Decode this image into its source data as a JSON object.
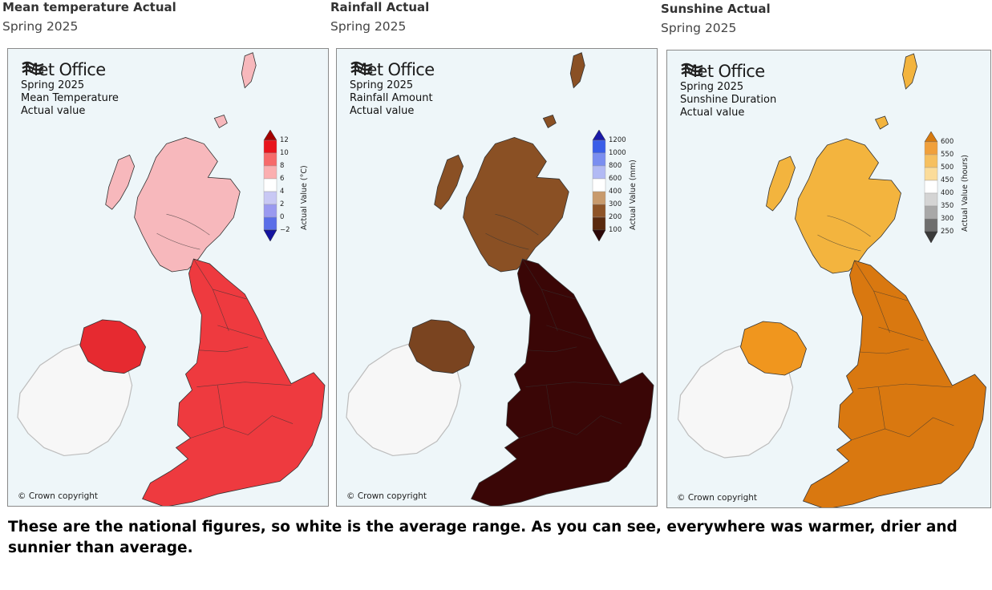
{
  "panels": [
    {
      "title": "Mean temperature Actual",
      "subtitle": "Spring 2025",
      "map": {
        "brand": "Met Office",
        "lines": [
          "Spring 2025",
          "Mean Temperature",
          "Actual value"
        ],
        "copyright": "© Crown copyright",
        "legend": {
          "label": "Actual Value (°C)",
          "ticks": [
            "12",
            "10",
            "8",
            "6",
            "4",
            "2",
            "0",
            "−2"
          ],
          "colors": [
            "#e8141c",
            "#f66a6a",
            "#fbafb0",
            "#ffffff",
            "#c8c8f4",
            "#9a9af0",
            "#5a6ee8"
          ],
          "top_color": "#a40000",
          "bottom_color": "#1414a0"
        },
        "fill_north": "#f7b8bc",
        "fill_south": "#ee3a3f",
        "fill_ni": "#e62a30"
      }
    },
    {
      "title": "Rainfall Actual",
      "subtitle": "Spring 2025",
      "map": {
        "brand": "Met Office",
        "lines": [
          "Spring 2025",
          "Rainfall Amount",
          "Actual value"
        ],
        "copyright": "© Crown copyright",
        "legend": {
          "label": "Actual Value (mm)",
          "ticks": [
            "1200",
            "1000",
            "800",
            "600",
            "400",
            "300",
            "200",
            "100"
          ],
          "colors": [
            "#3a5ee8",
            "#7a8ef0",
            "#b2baf4",
            "#ffffff",
            "#c89a6c",
            "#8e5428",
            "#5a2a0e"
          ],
          "top_color": "#1a1aa8",
          "bottom_color": "#2c0808"
        },
        "fill_north": "#8a5024",
        "fill_south": "#3a0606",
        "fill_ni": "#7a4420"
      }
    },
    {
      "title": "Sunshine Actual",
      "subtitle": "Spring 2025",
      "map": {
        "brand": "Met Office",
        "lines": [
          "Spring 2025",
          "Sunshine Duration",
          "Actual value"
        ],
        "copyright": "© Crown copyright",
        "legend": {
          "label": "Actual Value (hours)",
          "ticks": [
            "600",
            "550",
            "500",
            "450",
            "400",
            "350",
            "300",
            "250"
          ],
          "colors": [
            "#f0a03c",
            "#f6c060",
            "#fbdc9a",
            "#ffffff",
            "#d4d4d4",
            "#a8a8a8",
            "#6e6e6e"
          ],
          "top_color": "#d67a10",
          "bottom_color": "#3a3a3a"
        },
        "fill_north": "#f3b43e",
        "fill_south": "#d97810",
        "fill_ni": "#f0961e"
      }
    }
  ],
  "caption": "These are the national figures, so white is the average range. As you can see, everywhere was warmer, drier and sunnier than average."
}
